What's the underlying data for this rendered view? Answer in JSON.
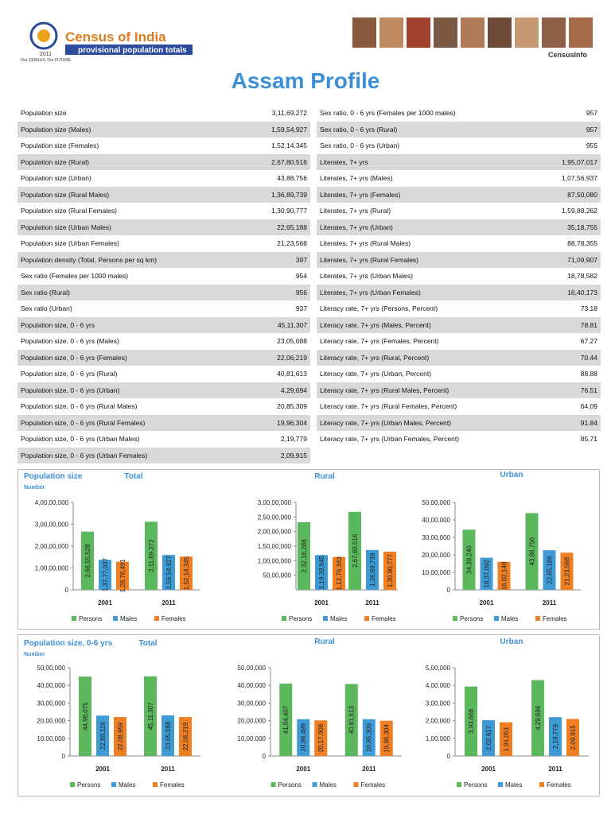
{
  "header": {
    "brand": "Census of India",
    "tagline": "provisional population totals",
    "year": "2011",
    "motto": "Our CENSUS, Our FUTURE",
    "partner": "CensusInfo"
  },
  "title": "Assam Profile",
  "table": {
    "left": [
      [
        "Population size",
        "3,11,69,272"
      ],
      [
        "Population size (Males)",
        "1,59,54,927"
      ],
      [
        "Population size (Females)",
        "1,52,14,345"
      ],
      [
        "Population size (Rural)",
        "2,67,80,516"
      ],
      [
        "Population size (Urban)",
        "43,88,756"
      ],
      [
        "Population size (Rural Males)",
        "1,36,89,739"
      ],
      [
        "Population size (Rural Females)",
        "1,30,90,777"
      ],
      [
        "Population size (Urban Males)",
        "22,65,188"
      ],
      [
        "Population size (Urban Females)",
        "21,23,568"
      ],
      [
        "Population density (Total, Persons per sq km)",
        "397"
      ],
      [
        "Sex ratio (Females per 1000 males)",
        "954"
      ],
      [
        "Sex ratio (Rural)",
        "956"
      ],
      [
        "Sex ratio (Urban)",
        "937"
      ],
      [
        "Population size, 0 - 6 yrs",
        "45,11,307"
      ],
      [
        "Population size, 0 - 6 yrs (Males)",
        "23,05,088"
      ],
      [
        "Population size, 0 - 6 yrs (Females)",
        "22,06,219"
      ],
      [
        "Population size, 0 - 6 yrs (Rural)",
        "40,81,613"
      ],
      [
        "Population size, 0 - 6 yrs (Urban)",
        "4,29,694"
      ],
      [
        "Population size, 0 - 6 yrs (Rural Males)",
        "20,85,309"
      ],
      [
        "Population size, 0 - 6 yrs (Rural Females)",
        "19,96,304"
      ],
      [
        "Population size, 0 - 6 yrs (Urban Males)",
        "2,19,779"
      ],
      [
        "Population size, 0 - 6 yrs (Urban Females)",
        "2,09,915"
      ]
    ],
    "right": [
      [
        "Sex ratio, 0 - 6 yrs (Females per 1000 males)",
        "957"
      ],
      [
        "Sex ratio, 0 - 6 yrs (Rural)",
        "957"
      ],
      [
        "Sex ratio, 0 - 6 yrs (Urban)",
        "955"
      ],
      [
        "Literates, 7+ yrs",
        "1,95,07,017"
      ],
      [
        "Literates, 7+ yrs (Males)",
        "1,07,56,937"
      ],
      [
        "Literates, 7+ yrs (Females)",
        "87,50,080"
      ],
      [
        "Literates, 7+ yrs (Rural)",
        "1,59,88,262"
      ],
      [
        "Literates, 7+ yrs (Urban)",
        "35,18,755"
      ],
      [
        "Literates, 7+ yrs (Rural Males)",
        "88,78,355"
      ],
      [
        "Literates, 7+ yrs (Rural Females)",
        "71,09,907"
      ],
      [
        "Literates, 7+ yrs (Urban Males)",
        "18,78,582"
      ],
      [
        "Literates, 7+ yrs (Urban Females)",
        "16,40,173"
      ],
      [
        "Literacy rate, 7+ yrs (Persons, Percent)",
        "73.18"
      ],
      [
        "Literacy rate, 7+ yrs (Males, Percent)",
        "78.81"
      ],
      [
        "Literacy rate, 7+ yrs (Females, Percent)",
        "67.27"
      ],
      [
        "Literacy rate, 7+ yrs (Rural, Percent)",
        "70.44"
      ],
      [
        "Literacy rate, 7+ yrs (Urban, Percent)",
        "88.88"
      ],
      [
        "Literacy rate, 7+ yrs (Rural Males, Percent)",
        "76.51"
      ],
      [
        "Literacy rate, 7+ yrs (Rural Females, Percent)",
        "64.09"
      ],
      [
        "Literacy rate, 7+ yrs (Urban Males, Percent)",
        "91.84"
      ],
      [
        "Literacy rate, 7+ yrs (Urban Females, Percent)",
        "85.71"
      ]
    ]
  },
  "sections": [
    {
      "title": "Population size",
      "unit": "Number"
    },
    {
      "title": "Population size, 0-6 yrs",
      "unit": "Number"
    }
  ],
  "chart_data": [
    {
      "type": "bar",
      "title": "Total",
      "categories": [
        "2001",
        "2011"
      ],
      "ylim": [
        0,
        40000000
      ],
      "yticks": [
        0,
        {
          "value": 10000000,
          "label": "1,00,00,000"
        },
        {
          "value": 20000000,
          "label": "2,00,00,000"
        },
        {
          "value": 30000000,
          "label": "3,00,00,000"
        },
        {
          "value": 40000000,
          "label": "4,00,00,000"
        }
      ],
      "series": [
        {
          "name": "Persons",
          "color": "#5cb85c",
          "values": [
            26655528,
            31169272
          ],
          "value_labels": [
            "2,66,55,528",
            "3,11,69,272"
          ]
        },
        {
          "name": "Males",
          "color": "#3f9bd5",
          "values": [
            13777037,
            15954927
          ],
          "value_labels": [
            "1,37,77,037",
            "1,59,54,927"
          ]
        },
        {
          "name": "Females",
          "color": "#f07f24",
          "values": [
            12878491,
            15214345
          ],
          "value_labels": [
            "1,28,78,491",
            "1,52,14,345"
          ]
        }
      ]
    },
    {
      "type": "bar",
      "title": "Rural",
      "categories": [
        "2001",
        "2011"
      ],
      "ylim": [
        0,
        30000000
      ],
      "yticks": [
        {
          "value": 5000000,
          "label": "50,00,000"
        },
        {
          "value": 10000000,
          "label": "1,00,00,000"
        },
        {
          "value": 15000000,
          "label": "1,50,00,000"
        },
        {
          "value": 20000000,
          "label": "2,00,00,000"
        },
        {
          "value": 25000000,
          "label": "2,50,00,000"
        },
        {
          "value": 30000000,
          "label": "3,00,00,000"
        }
      ],
      "series": [
        {
          "name": "Persons",
          "color": "#5cb85c",
          "values": [
            23216288,
            26780516
          ],
          "value_labels": [
            "2,32,16,288",
            "2,67,80,516"
          ]
        },
        {
          "name": "Males",
          "color": "#3f9bd5",
          "values": [
            11939945,
            13689739
          ],
          "value_labels": [
            "1,19,39,945",
            "1,36,89,739"
          ]
        },
        {
          "name": "Females",
          "color": "#f07f24",
          "values": [
            11276343,
            13090777
          ],
          "value_labels": [
            "1,12,76,343",
            "1,30,90,777"
          ]
        }
      ]
    },
    {
      "type": "bar",
      "title": "Urban",
      "categories": [
        "2001",
        "2011"
      ],
      "ylim": [
        0,
        5000000
      ],
      "yticks": [
        0,
        {
          "value": 1000000,
          "label": "10,00,000"
        },
        {
          "value": 2000000,
          "label": "20,00,000"
        },
        {
          "value": 3000000,
          "label": "30,00,000"
        },
        {
          "value": 4000000,
          "label": "40,00,000"
        },
        {
          "value": 5000000,
          "label": "50,00,000"
        }
      ],
      "series": [
        {
          "name": "Persons",
          "color": "#5cb85c",
          "values": [
            3439240,
            4388756
          ],
          "value_labels": [
            "34,39,240",
            "43,88,756"
          ]
        },
        {
          "name": "Males",
          "color": "#3f9bd5",
          "values": [
            1837092,
            2265188
          ],
          "value_labels": [
            "18,37,092",
            "22,65,188"
          ]
        },
        {
          "name": "Females",
          "color": "#f07f24",
          "values": [
            1602148,
            2123568
          ],
          "value_labels": [
            "16,02,148",
            "21,23,568"
          ]
        }
      ]
    },
    {
      "type": "bar",
      "title": "Total",
      "categories": [
        "2001",
        "2011"
      ],
      "ylim": [
        0,
        5000000
      ],
      "yticks": [
        0,
        {
          "value": 1000000,
          "label": "10,00,000"
        },
        {
          "value": 2000000,
          "label": "20,00,000"
        },
        {
          "value": 3000000,
          "label": "30,00,000"
        },
        {
          "value": 4000000,
          "label": "40,00,000"
        },
        {
          "value": 5000000,
          "label": "50,00,000"
        }
      ],
      "series": [
        {
          "name": "Persons",
          "color": "#5cb85c",
          "values": [
            4498075,
            4511307
          ],
          "value_labels": [
            "44,98,075",
            "45,11,307"
          ]
        },
        {
          "name": "Males",
          "color": "#3f9bd5",
          "values": [
            2289116,
            2305088
          ],
          "value_labels": [
            "22,89,116",
            "23,05,088"
          ]
        },
        {
          "name": "Females",
          "color": "#f07f24",
          "values": [
            2208959,
            2206219
          ],
          "value_labels": [
            "22,08,959",
            "22,06,219"
          ]
        }
      ]
    },
    {
      "type": "bar",
      "title": "Rural",
      "categories": [
        "2001",
        "2011"
      ],
      "ylim": [
        0,
        5000000
      ],
      "yticks": [
        0,
        {
          "value": 1000000,
          "label": "10,00,000"
        },
        {
          "value": 2000000,
          "label": "20,00,000"
        },
        {
          "value": 3000000,
          "label": "30,00,000"
        },
        {
          "value": 4000000,
          "label": "40,00,000"
        },
        {
          "value": 5000000,
          "label": "50,00,000"
        }
      ],
      "series": [
        {
          "name": "Persons",
          "color": "#5cb85c",
          "values": [
            4104407,
            4081613
          ],
          "value_labels": [
            "41,04,407",
            "40,81,613"
          ]
        },
        {
          "name": "Males",
          "color": "#3f9bd5",
          "values": [
            2086499,
            2085309
          ],
          "value_labels": [
            "20,86,499",
            "20,85,309"
          ]
        },
        {
          "name": "Females",
          "color": "#f07f24",
          "values": [
            2017908,
            1996304
          ],
          "value_labels": [
            "20,17,908",
            "19,96,304"
          ]
        }
      ]
    },
    {
      "type": "bar",
      "title": "Urban",
      "categories": [
        "2001",
        "2011"
      ],
      "ylim": [
        0,
        500000
      ],
      "yticks": [
        0,
        {
          "value": 100000,
          "label": "1,00,000"
        },
        {
          "value": 200000,
          "label": "2,00,000"
        },
        {
          "value": 300000,
          "label": "3,00,000"
        },
        {
          "value": 400000,
          "label": "4,00,000"
        },
        {
          "value": 500000,
          "label": "5,00,000"
        }
      ],
      "series": [
        {
          "name": "Persons",
          "color": "#5cb85c",
          "values": [
            393668,
            429694
          ],
          "value_labels": [
            "3,93,668",
            "4,29,694"
          ]
        },
        {
          "name": "Males",
          "color": "#3f9bd5",
          "values": [
            202617,
            219779
          ],
          "value_labels": [
            "2,02,617",
            "2,19,779"
          ]
        },
        {
          "name": "Females",
          "color": "#f07f24",
          "values": [
            191051,
            209915
          ],
          "value_labels": [
            "1,91,051",
            "2,09,915"
          ]
        }
      ]
    }
  ]
}
